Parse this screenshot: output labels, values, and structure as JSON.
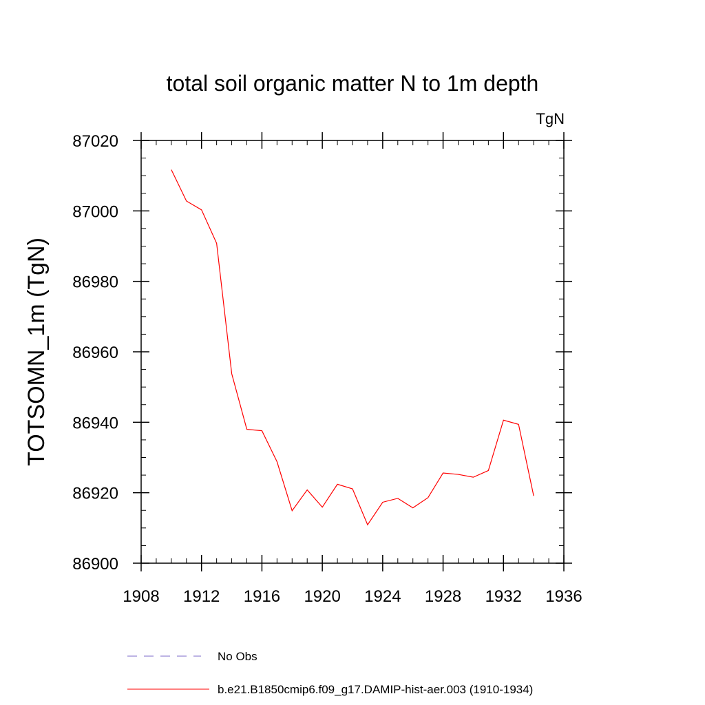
{
  "chart_data": {
    "type": "line",
    "title": "total soil organic matter N to 1m depth",
    "units": "TgN",
    "ylabel": "TOTSOMN_1m  (TgN)",
    "xlabel": "",
    "xlim": [
      1908,
      1936
    ],
    "ylim": [
      86900,
      87020
    ],
    "x_ticks": [
      1908,
      1912,
      1916,
      1920,
      1924,
      1928,
      1932,
      1936
    ],
    "x_tick_labels": [
      "1908",
      "1912",
      "1916",
      "1920",
      "1924",
      "1928",
      "1932",
      "1936"
    ],
    "y_ticks": [
      86900,
      86920,
      86940,
      86960,
      86980,
      87000,
      87020
    ],
    "y_tick_labels": [
      "86900",
      "86920",
      "86940",
      "86960",
      "86980",
      "87000",
      "87020"
    ],
    "x_minor_step": 1,
    "y_minor_step": 5,
    "grid": false,
    "legend_position": "bottom",
    "series": [
      {
        "name": "No Obs",
        "color": "#7b68c8",
        "dash": "dashed",
        "x": [],
        "y": []
      },
      {
        "name": "b.e21.B1850cmip6.f09_g17.DAMIP-hist-aer.003 (1910-1934)",
        "color": "#ff0000",
        "dash": "solid",
        "x": [
          1910,
          1911,
          1912,
          1913,
          1914,
          1915,
          1916,
          1917,
          1918,
          1919,
          1920,
          1921,
          1922,
          1923,
          1924,
          1925,
          1926,
          1927,
          1928,
          1929,
          1930,
          1931,
          1932,
          1933,
          1934
        ],
        "y": [
          87011.7,
          87002.8,
          87000.3,
          86990.8,
          86953.8,
          86938.0,
          86937.6,
          86928.8,
          86914.9,
          86920.8,
          86915.9,
          86922.4,
          86921.1,
          86910.9,
          86917.3,
          86918.4,
          86915.7,
          86918.6,
          86925.6,
          86925.2,
          86924.4,
          86926.3,
          86940.6,
          86939.4,
          86919.1
        ]
      }
    ]
  }
}
